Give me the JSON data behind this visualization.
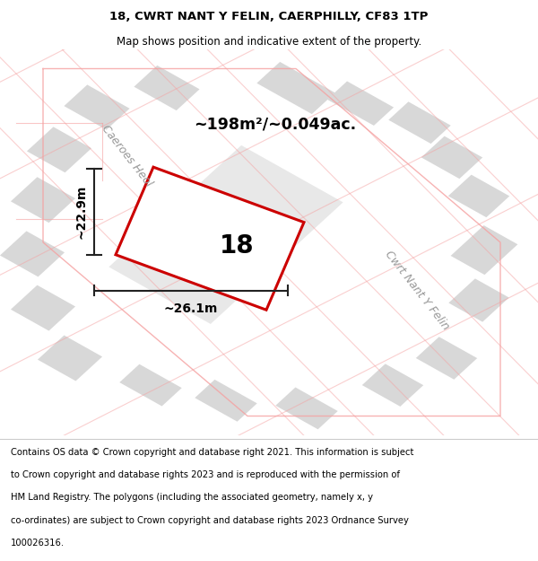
{
  "title": "18, CWRT NANT Y FELIN, CAERPHILLY, CF83 1TP",
  "subtitle": "Map shows position and indicative extent of the property.",
  "footer_lines": [
    "Contains OS data © Crown copyright and database right 2021. This information is subject",
    "to Crown copyright and database rights 2023 and is reproduced with the permission of",
    "HM Land Registry. The polygons (including the associated geometry, namely x, y",
    "co-ordinates) are subject to Crown copyright and database rights 2023 Ordnance Survey",
    "100026316."
  ],
  "area_label": "~198m²/~0.049ac.",
  "width_label": "~26.1m",
  "height_label": "~22.9m",
  "property_number": "18",
  "map_bg": "#ffffff",
  "road_label_1": "Caeroes Heol",
  "road_label_2": "Cwrt Nant Y Felin",
  "red_polygon_color": "#cc0000",
  "gray_block_color": "#d8d8d8",
  "pink_line_color": "#f5a0a0",
  "dim_line_color": "#222222",
  "title_fontsize": 9.5,
  "subtitle_fontsize": 8.5,
  "footer_fontsize": 7.2,
  "area_fontsize": 12.5,
  "number_fontsize": 20,
  "dim_fontsize": 10,
  "road_fontsize": 9
}
